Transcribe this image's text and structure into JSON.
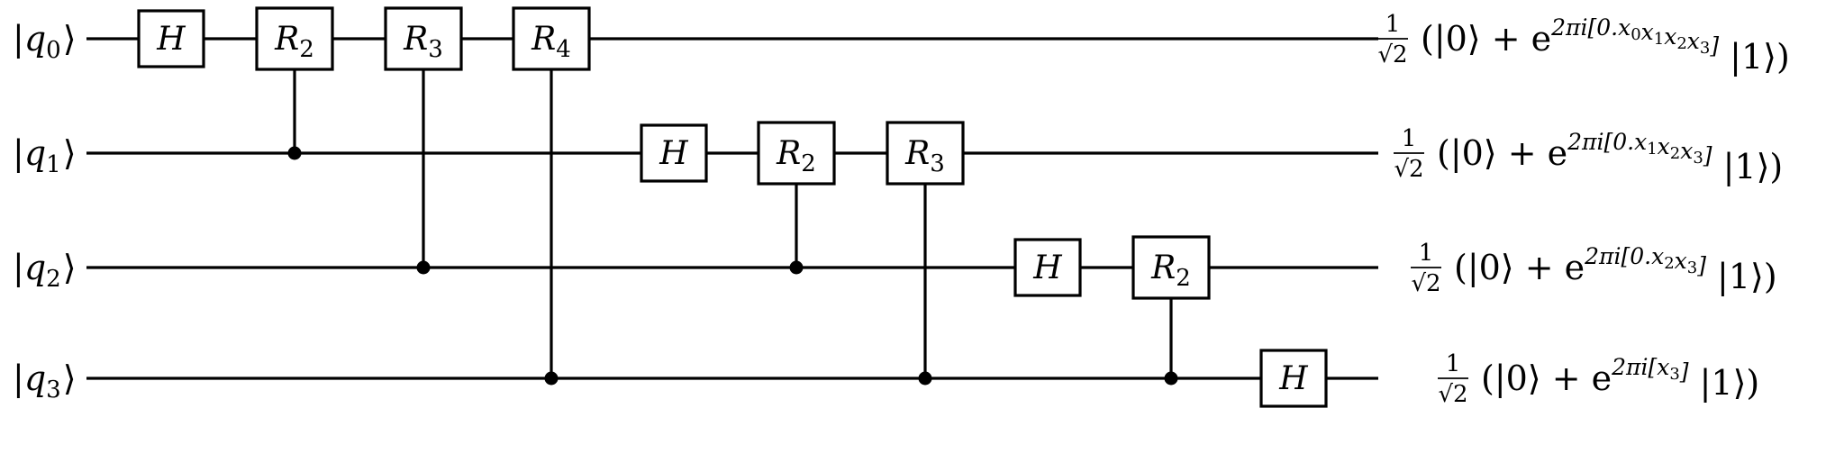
{
  "qubits": [
    {
      "label": "q",
      "index": "0",
      "output": {
        "num": "1",
        "den": "√2",
        "open": "(|0⟩ + e",
        "exp": "2πi[0.",
        "bits": [
          "x",
          "0",
          "x",
          "1",
          "x",
          "2",
          "x",
          "3"
        ],
        "exp_close": "]",
        "close": " |1⟩)"
      }
    },
    {
      "label": "q",
      "index": "1",
      "output": {
        "num": "1",
        "den": "√2",
        "open": "(|0⟩ + e",
        "exp": "2πi[0.",
        "bits": [
          "x",
          "1",
          "x",
          "2",
          "x",
          "3"
        ],
        "exp_close": "]",
        "close": " |1⟩)"
      }
    },
    {
      "label": "q",
      "index": "2",
      "output": {
        "num": "1",
        "den": "√2",
        "open": "(|0⟩ + e",
        "exp": "2πi[0.",
        "bits": [
          "x",
          "2",
          "x",
          "3"
        ],
        "exp_close": "]",
        "close": " |1⟩)"
      }
    },
    {
      "label": "q",
      "index": "3",
      "output": {
        "num": "1",
        "den": "√2",
        "open": "(|0⟩ + e",
        "exp": "2πi[",
        "bits": [
          "x",
          "3"
        ],
        "exp_close": "]",
        "close": " |1⟩)"
      }
    }
  ],
  "gates": [
    {
      "type": "H",
      "target": 0,
      "text": "H"
    },
    {
      "type": "R",
      "target": 0,
      "control": 1,
      "text": "R",
      "sub": "2"
    },
    {
      "type": "R",
      "target": 0,
      "control": 2,
      "text": "R",
      "sub": "3"
    },
    {
      "type": "R",
      "target": 0,
      "control": 3,
      "text": "R",
      "sub": "4"
    },
    {
      "type": "H",
      "target": 1,
      "text": "H"
    },
    {
      "type": "R",
      "target": 1,
      "control": 2,
      "text": "R",
      "sub": "2"
    },
    {
      "type": "R",
      "target": 1,
      "control": 3,
      "text": "R",
      "sub": "3"
    },
    {
      "type": "H",
      "target": 2,
      "text": "H"
    },
    {
      "type": "R",
      "target": 2,
      "control": 3,
      "text": "R",
      "sub": "2"
    },
    {
      "type": "H",
      "target": 3,
      "text": "H"
    }
  ]
}
